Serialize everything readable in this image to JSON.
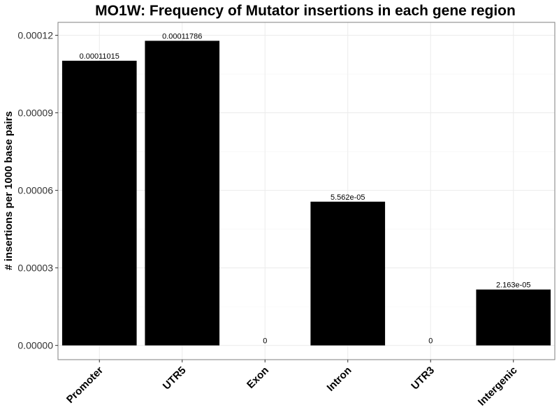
{
  "chart_data": {
    "type": "bar",
    "title": "MO1W: Frequency of Mutator insertions in each gene region",
    "xlabel": "",
    "ylabel": "# insertions per 1000 base pairs",
    "categories": [
      "Promoter",
      "UTR5",
      "Exon",
      "Intron",
      "UTR3",
      "Intergenic"
    ],
    "values": [
      0.00011015,
      0.00011786,
      0,
      5.562e-05,
      0,
      2.163e-05
    ],
    "data_labels": [
      "0.00011015",
      "0.00011786",
      "0",
      "5.562e-05",
      "0",
      "2.163e-05"
    ],
    "yticks": [
      0,
      3e-05,
      6e-05,
      9e-05,
      0.00012
    ],
    "ytick_labels": [
      "0.00000",
      "0.00003",
      "0.00006",
      "0.00009",
      "0.00012"
    ],
    "ylim": [
      -5.5e-06,
      0.000125
    ],
    "grid": true,
    "legend": "none",
    "colors": {
      "bar": "#000000",
      "panel_border": "#7f7f7f",
      "grid_major": "#ebebeb",
      "grid_minor": "#f5f5f5"
    }
  }
}
